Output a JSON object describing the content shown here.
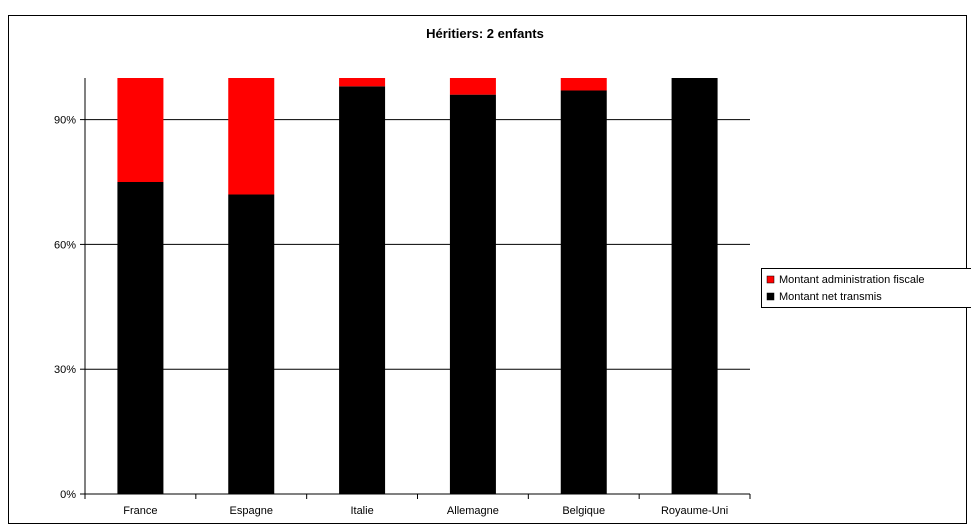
{
  "chart_data": {
    "type": "bar",
    "stacked": true,
    "title": "Héritiers: 2 enfants",
    "categories": [
      "France",
      "Espagne",
      "Italie",
      "Allemagne",
      "Belgique",
      "Royaume-Uni"
    ],
    "series": [
      {
        "name": "Montant net transmis",
        "color": "#000000",
        "values": [
          75,
          72,
          98,
          96,
          97,
          100
        ]
      },
      {
        "name": "Montant administration fiscale",
        "color": "#ff0000",
        "values": [
          25,
          28,
          2,
          4,
          3,
          0
        ]
      }
    ],
    "legend_order": [
      "Montant administration fiscale",
      "Montant net transmis"
    ],
    "y_ticks": [
      "0%",
      "30%",
      "60%",
      "90%"
    ],
    "y_tick_values": [
      0,
      30,
      60,
      90
    ],
    "ylim": [
      0,
      100
    ],
    "grid": true,
    "legend_position": "right"
  }
}
